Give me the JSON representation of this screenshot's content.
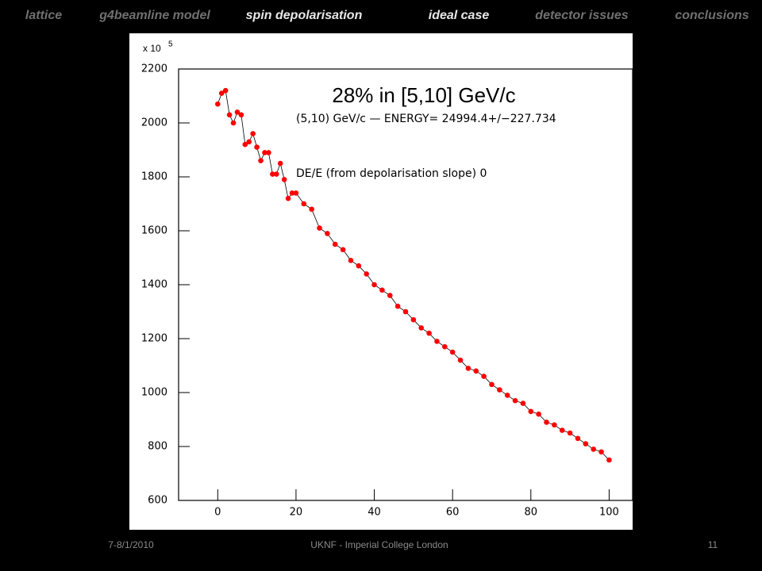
{
  "nav": [
    {
      "label": "lattice",
      "active": false
    },
    {
      "label": "g4beamline model",
      "active": false
    },
    {
      "label": "spin depolarisation",
      "active": true
    },
    {
      "label": "ideal case",
      "active": true
    },
    {
      "label": "detector issues",
      "active": false
    },
    {
      "label": "conclusions",
      "active": false
    }
  ],
  "footer": {
    "date": "7-8/1/2010",
    "venue": "UKNF - Imperial College London",
    "page": "11"
  },
  "chart_data": {
    "type": "scatter",
    "title": "28% in [5,10] GeV/c",
    "annotations": [
      "(5,10) GeV/c  — ENERGY= 24994.4+/−227.734",
      "DE/E (from depolarisation slope)  0"
    ],
    "y_multiplier": "x 10",
    "y_exponent": "5",
    "color": "#ff0000",
    "x": [
      0,
      1,
      2,
      3,
      4,
      5,
      6,
      7,
      8,
      9,
      10,
      11,
      12,
      13,
      14,
      15,
      16,
      17,
      18,
      19,
      20,
      22,
      24,
      26,
      28,
      30,
      32,
      34,
      36,
      38,
      40,
      42,
      44,
      46,
      48,
      50,
      52,
      54,
      56,
      58,
      60,
      62,
      64,
      66,
      68,
      70,
      72,
      74,
      76,
      78,
      80,
      82,
      84,
      86,
      88,
      90,
      92,
      94,
      96,
      98,
      100
    ],
    "values": [
      2070,
      2110,
      2120,
      2030,
      2000,
      2040,
      2030,
      1920,
      1930,
      1960,
      1910,
      1860,
      1890,
      1890,
      1810,
      1810,
      1850,
      1790,
      1720,
      1740,
      1740,
      1700,
      1680,
      1610,
      1590,
      1550,
      1530,
      1490,
      1470,
      1440,
      1400,
      1380,
      1360,
      1320,
      1300,
      1270,
      1240,
      1220,
      1190,
      1170,
      1150,
      1120,
      1090,
      1080,
      1060,
      1030,
      1010,
      990,
      970,
      960,
      930,
      920,
      890,
      880,
      860,
      850,
      830,
      810,
      790,
      780,
      750
    ],
    "xlim": [
      -10,
      106
    ],
    "ylim": [
      600,
      2200
    ],
    "xticks": [
      0,
      20,
      40,
      60,
      80,
      100
    ],
    "yticks": [
      600,
      800,
      1000,
      1200,
      1400,
      1600,
      1800,
      2000,
      2200
    ]
  }
}
